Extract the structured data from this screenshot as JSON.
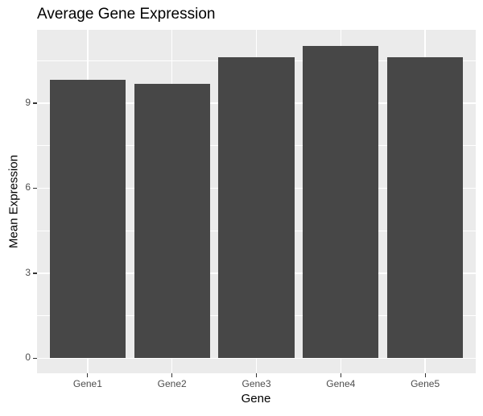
{
  "chart_data": {
    "type": "bar",
    "title": "Average Gene Expression",
    "xlabel": "Gene",
    "ylabel": "Mean Expression",
    "categories": [
      "Gene1",
      "Gene2",
      "Gene3",
      "Gene4",
      "Gene5"
    ],
    "values": [
      9.84,
      9.67,
      10.63,
      11.02,
      10.61
    ],
    "ylim": [
      -0.53,
      11.59
    ],
    "yticks": [
      0,
      3,
      6,
      9
    ],
    "grid": true,
    "legend": null,
    "bar_color": "#474747",
    "panel_background": "#ebebeb"
  }
}
